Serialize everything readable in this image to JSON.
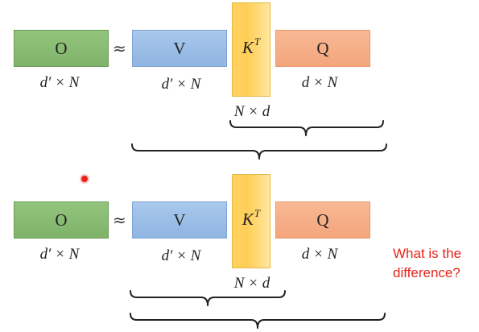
{
  "diagrams": [
    {
      "matrices": {
        "o": "O",
        "v": "V",
        "k": "K",
        "k_sup": "T",
        "q": "Q"
      },
      "approx_symbol": "≈",
      "dims": {
        "o": "d′ × N",
        "v": "d′ × N",
        "k": "N × d",
        "q": "d × N"
      },
      "grouping": "K^T Q first"
    },
    {
      "matrices": {
        "o": "O",
        "v": "V",
        "k": "K",
        "k_sup": "T",
        "q": "Q"
      },
      "approx_symbol": "≈",
      "dims": {
        "o": "d′ × N",
        "v": "d′ × N",
        "k": "N × d",
        "q": "d × N"
      },
      "grouping": "V K^T first"
    }
  ],
  "question": {
    "line1": "What is the",
    "line2": "difference?"
  },
  "colors": {
    "o": "#93c47d",
    "v": "#a9c8ec",
    "k": "#ffd35f",
    "q": "#f8b995",
    "question": "#e8231a"
  }
}
